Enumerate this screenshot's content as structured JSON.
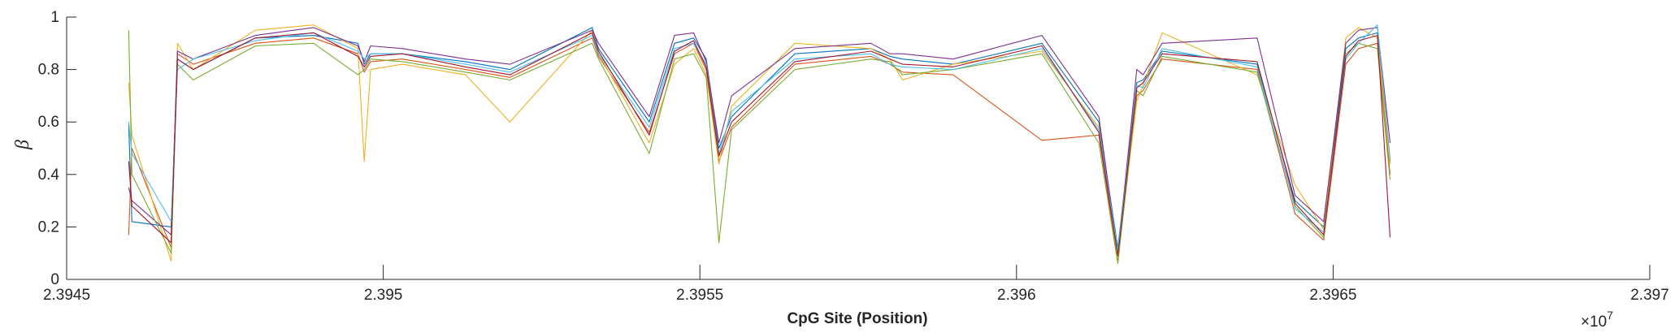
{
  "chart_data": {
    "type": "line",
    "title": "",
    "xlabel": "CpG Site (Position)",
    "ylabel": "β",
    "x_exponent_base": "×10",
    "x_exponent_power": "7",
    "xlim": [
      23945000,
      23970000
    ],
    "ylim": [
      0,
      1
    ],
    "xticks": [
      23945000,
      23950000,
      23955000,
      23960000,
      23965000,
      23970000
    ],
    "xtick_labels": [
      "2.3945",
      "2.395",
      "2.3955",
      "2.396",
      "2.3965",
      "2.397"
    ],
    "yticks": [
      0,
      0.2,
      0.4,
      0.6,
      0.8,
      1
    ],
    "ytick_labels": [
      "0",
      "0.2",
      "0.4",
      "0.6",
      "0.8",
      "1"
    ],
    "grid": false,
    "legend": "none",
    "colors": [
      "#0072bd",
      "#d95319",
      "#edb120",
      "#7e2f8e",
      "#77ac30",
      "#4dbeee",
      "#a2142f"
    ],
    "x": [
      23945980,
      23946030,
      23946650,
      23946750,
      23947000,
      23947980,
      23948900,
      23949600,
      23949700,
      23949800,
      23950300,
      23951300,
      23952000,
      23953300,
      23953400,
      23954200,
      23954600,
      23954900,
      23955100,
      23955300,
      23955500,
      23956500,
      23957700,
      23958000,
      23958200,
      23959000,
      23960400,
      23961300,
      23961600,
      23961900,
      23962000,
      23962300,
      23963800,
      23964400,
      23964850,
      23965200,
      23965400,
      23965700,
      23965900
    ],
    "series": [
      {
        "values": [
          0.59,
          0.22,
          0.2,
          0.84,
          0.8,
          0.92,
          0.93,
          0.9,
          0.82,
          0.86,
          0.86,
          0.83,
          0.8,
          0.96,
          0.88,
          0.6,
          0.9,
          0.92,
          0.84,
          0.5,
          0.62,
          0.86,
          0.88,
          0.85,
          0.84,
          0.82,
          0.9,
          0.6,
          0.12,
          0.75,
          0.76,
          0.87,
          0.82,
          0.3,
          0.2,
          0.88,
          0.92,
          0.94,
          0.45
        ]
      },
      {
        "values": [
          0.17,
          0.5,
          0.12,
          0.86,
          0.82,
          0.9,
          0.92,
          0.86,
          0.79,
          0.83,
          0.84,
          0.8,
          0.77,
          0.92,
          0.85,
          0.56,
          0.86,
          0.9,
          0.8,
          0.45,
          0.58,
          0.82,
          0.85,
          0.82,
          0.79,
          0.78,
          0.53,
          0.55,
          0.07,
          0.7,
          0.72,
          0.84,
          0.8,
          0.25,
          0.15,
          0.82,
          0.88,
          0.9,
          0.4
        ]
      },
      {
        "values": [
          0.75,
          0.55,
          0.07,
          0.9,
          0.8,
          0.95,
          0.97,
          0.88,
          0.45,
          0.8,
          0.82,
          0.78,
          0.6,
          0.95,
          0.86,
          0.52,
          0.82,
          0.88,
          0.78,
          0.44,
          0.66,
          0.9,
          0.88,
          0.84,
          0.76,
          0.82,
          0.87,
          0.58,
          0.08,
          0.68,
          0.74,
          0.94,
          0.78,
          0.36,
          0.19,
          0.92,
          0.96,
          0.92,
          0.44
        ]
      },
      {
        "values": [
          0.35,
          0.3,
          0.17,
          0.87,
          0.84,
          0.93,
          0.96,
          0.89,
          0.83,
          0.89,
          0.88,
          0.84,
          0.82,
          0.95,
          0.9,
          0.62,
          0.93,
          0.94,
          0.83,
          0.52,
          0.7,
          0.88,
          0.9,
          0.86,
          0.86,
          0.84,
          0.93,
          0.62,
          0.1,
          0.8,
          0.78,
          0.9,
          0.92,
          0.32,
          0.22,
          0.9,
          0.95,
          0.96,
          0.52
        ]
      },
      {
        "values": [
          0.95,
          0.4,
          0.1,
          0.82,
          0.76,
          0.89,
          0.9,
          0.78,
          0.8,
          0.84,
          0.83,
          0.79,
          0.76,
          0.9,
          0.84,
          0.48,
          0.84,
          0.86,
          0.77,
          0.14,
          0.57,
          0.8,
          0.84,
          0.83,
          0.78,
          0.8,
          0.86,
          0.52,
          0.06,
          0.72,
          0.7,
          0.85,
          0.79,
          0.28,
          0.16,
          0.86,
          0.9,
          0.88,
          0.38
        ]
      },
      {
        "values": [
          0.6,
          0.48,
          0.22,
          0.8,
          0.84,
          0.91,
          0.94,
          0.87,
          0.84,
          0.86,
          0.86,
          0.82,
          0.79,
          0.93,
          0.86,
          0.58,
          0.88,
          0.9,
          0.82,
          0.48,
          0.64,
          0.84,
          0.86,
          0.82,
          0.81,
          0.8,
          0.88,
          0.57,
          0.11,
          0.74,
          0.73,
          0.88,
          0.81,
          0.27,
          0.18,
          0.84,
          0.9,
          0.97,
          0.46
        ]
      },
      {
        "values": [
          0.45,
          0.28,
          0.14,
          0.84,
          0.8,
          0.92,
          0.94,
          0.85,
          0.81,
          0.85,
          0.86,
          0.81,
          0.78,
          0.94,
          0.87,
          0.55,
          0.87,
          0.91,
          0.81,
          0.47,
          0.6,
          0.83,
          0.87,
          0.84,
          0.82,
          0.81,
          0.89,
          0.56,
          0.09,
          0.73,
          0.75,
          0.86,
          0.83,
          0.29,
          0.17,
          0.85,
          0.91,
          0.93,
          0.16
        ]
      }
    ]
  }
}
